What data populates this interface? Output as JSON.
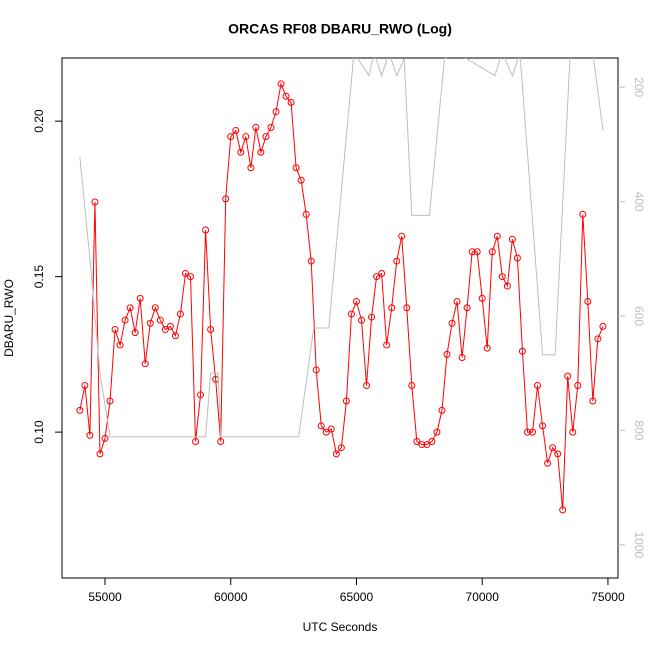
{
  "chart_data": {
    "type": "line",
    "title": "ORCAS RF08 DBARU_RWO (Log)",
    "x_label": "UTC Seconds",
    "y_label": "DBARU_RWO",
    "xlim": [
      53290,
      75400
    ],
    "xticks": [
      55000,
      60000,
      65000,
      70000,
      75000
    ],
    "ylim": [
      0.0531,
      0.2203
    ],
    "yticks": [
      {
        "value": 0.1,
        "label": "0.10"
      },
      0.15,
      {
        "value": 0.2,
        "label": "0.20"
      }
    ],
    "y2lim": [
      1058,
      149
    ],
    "y2ticks": [
      200,
      400,
      600,
      800,
      1000
    ],
    "series": [
      {
        "color": "#ff0000",
        "markers": true,
        "x": [
          54000,
          54200,
          54400,
          54600,
          54800,
          55000,
          55200,
          55400,
          55600,
          55800,
          56000,
          56200,
          56400,
          56600,
          56800,
          57000,
          57200,
          57400,
          57600,
          57800,
          58000,
          58200,
          58400,
          58600,
          58800,
          59000,
          59200,
          59400,
          59600,
          59800,
          60000,
          60200,
          60400,
          60600,
          60800,
          61000,
          61200,
          61400,
          61600,
          61800,
          62000,
          62200,
          62400,
          62600,
          62800,
          63000,
          63200,
          63400,
          63600,
          63800,
          64000,
          64200,
          64400,
          64600,
          64800,
          65000,
          65200,
          65400,
          65600,
          65800,
          66000,
          66200,
          66400,
          66600,
          66800,
          67000,
          67200,
          67400,
          67600,
          67800,
          68000,
          68200,
          68400,
          68600,
          68800,
          69000,
          69200,
          69400,
          69600,
          69800,
          70000,
          70200,
          70400,
          70600,
          70800,
          71000,
          71200,
          71400,
          71600,
          71800,
          72000,
          72200,
          72400,
          72600,
          72800,
          73000,
          73200,
          73400,
          73600,
          73800,
          74000,
          74200,
          74400,
          74600,
          74800
        ],
        "values": [
          0.107,
          0.115,
          0.099,
          0.174,
          0.093,
          0.098,
          0.11,
          0.133,
          0.128,
          0.136,
          0.14,
          0.132,
          0.143,
          0.122,
          0.135,
          0.14,
          0.136,
          0.133,
          0.134,
          0.131,
          0.138,
          0.151,
          0.15,
          0.097,
          0.112,
          0.165,
          0.133,
          0.117,
          0.097,
          0.175,
          0.195,
          0.197,
          0.19,
          0.195,
          0.185,
          0.198,
          0.19,
          0.195,
          0.198,
          0.203,
          0.212,
          0.208,
          0.206,
          0.185,
          0.181,
          0.17,
          0.155,
          0.12,
          0.102,
          0.1,
          0.101,
          0.093,
          0.095,
          0.11,
          0.138,
          0.142,
          0.136,
          0.115,
          0.137,
          0.15,
          0.151,
          0.128,
          0.14,
          0.155,
          0.163,
          0.14,
          0.115,
          0.097,
          0.096,
          0.096,
          0.097,
          0.1,
          0.107,
          0.125,
          0.135,
          0.142,
          0.124,
          0.14,
          0.158,
          0.158,
          0.143,
          0.127,
          0.158,
          0.163,
          0.15,
          0.147,
          0.162,
          0.156,
          0.126,
          0.1,
          0.1,
          0.115,
          0.102,
          0.09,
          0.095,
          0.093,
          0.075,
          0.118,
          0.1,
          0.115,
          0.17,
          0.142,
          0.11,
          0.13,
          0.134
        ]
      },
      {
        "color": "#bebebe",
        "axis": "y2",
        "markers": false,
        "x": [
          54000,
          54400,
          54800,
          55200,
          59000,
          59200,
          59500,
          59600,
          62700,
          63300,
          63900,
          64900,
          65500,
          65700,
          66000,
          66300,
          66600,
          66900,
          67200,
          67900,
          68500,
          69000,
          70500,
          70800,
          71200,
          71500,
          72400,
          72900,
          73500,
          74400,
          74800
        ],
        "values": [
          322,
          500,
          700,
          811,
          811,
          700,
          700,
          811,
          811,
          621,
          621,
          140,
          180,
          140,
          180,
          140,
          180,
          150,
          424,
          424,
          150,
          140,
          180,
          140,
          180,
          140,
          668,
          668,
          140,
          140,
          275
        ]
      }
    ]
  }
}
